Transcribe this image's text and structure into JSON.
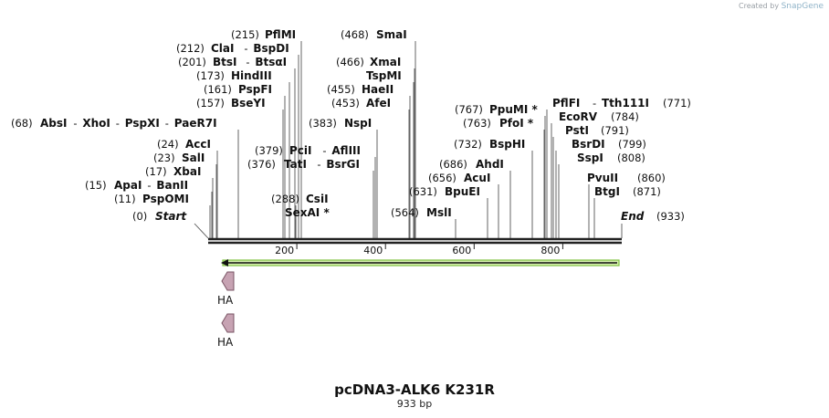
{
  "credit": {
    "text": "Created by",
    "brand": "SnapGene"
  },
  "map": {
    "title": "pcDNA3-ALK6 K231R",
    "length_label": "933 bp",
    "start_label": "Start",
    "start_pos": "(0)",
    "end_label": "End",
    "end_pos": "(933)",
    "axis_ticks": [
      "200",
      "400",
      "600",
      "800"
    ],
    "enzymes": [
      {
        "pos": "(215)",
        "name": "PflMI"
      },
      {
        "pos": "(212)",
        "name": "ClaI",
        "name2": "BspDI"
      },
      {
        "pos": "(201)",
        "name": "BtsI",
        "name2": "BtsαI"
      },
      {
        "pos": "(173)",
        "name": "HindIII"
      },
      {
        "pos": "(161)",
        "name": "PspFI"
      },
      {
        "pos": "(157)",
        "name": "BseYI"
      },
      {
        "pos": "(68)",
        "name": "AbsI",
        "name2": "XhoI",
        "name3": "PspXI",
        "name4": "PaeR7I"
      },
      {
        "pos": "(24)",
        "name": "AccI"
      },
      {
        "pos": "(23)",
        "name": "SalI"
      },
      {
        "pos": "(17)",
        "name": "XbaI"
      },
      {
        "pos": "(15)",
        "name": "ApaI",
        "name2": "BanII"
      },
      {
        "pos": "(11)",
        "name": "PspOMI"
      },
      {
        "pos": "(379)",
        "name": "PciI",
        "name2": "AflIII"
      },
      {
        "pos": "(376)",
        "name": "TatI",
        "name2": "BsrGI"
      },
      {
        "pos": "(288)",
        "name": "CsiI"
      },
      {
        "pos": "",
        "name": "SexAI *"
      },
      {
        "pos": "(468)",
        "name": "SmaI"
      },
      {
        "pos": "(466)",
        "name": "XmaI"
      },
      {
        "pos": "",
        "name": "TspMI"
      },
      {
        "pos": "(455)",
        "name": "HaeII"
      },
      {
        "pos": "(453)",
        "name": "AfeI"
      },
      {
        "pos": "(383)",
        "name": "NspI"
      },
      {
        "pos": "(564)",
        "name": "MslI"
      },
      {
        "pos": "(631)",
        "name": "BpuEI"
      },
      {
        "pos": "(656)",
        "name": "AcuI"
      },
      {
        "pos": "(686)",
        "name": "AhdI"
      },
      {
        "pos": "(732)",
        "name": "BspHI"
      },
      {
        "pos": "(763)",
        "name": "PfoI *"
      },
      {
        "pos": "(767)",
        "name": "PpuMI *"
      },
      {
        "pos": "(771)",
        "name": "PflFI",
        "name2": "Tth111I"
      },
      {
        "pos": "(784)",
        "name": "EcoRV"
      },
      {
        "pos": "(791)",
        "name": "PstI"
      },
      {
        "pos": "(799)",
        "name": "BsrDI"
      },
      {
        "pos": "(808)",
        "name": "SspI"
      },
      {
        "pos": "(860)",
        "name": "PvuII"
      },
      {
        "pos": "(871)",
        "name": "BtgI"
      }
    ],
    "features": [
      {
        "name": "HA"
      },
      {
        "name": "HA"
      }
    ],
    "colors": {
      "backbone": "#222222",
      "orf_fill": "#d8f0b0",
      "orf_stroke": "#7fc241",
      "feature_fill": "#c7a3b3",
      "feature_stroke": "#7a5565"
    }
  }
}
